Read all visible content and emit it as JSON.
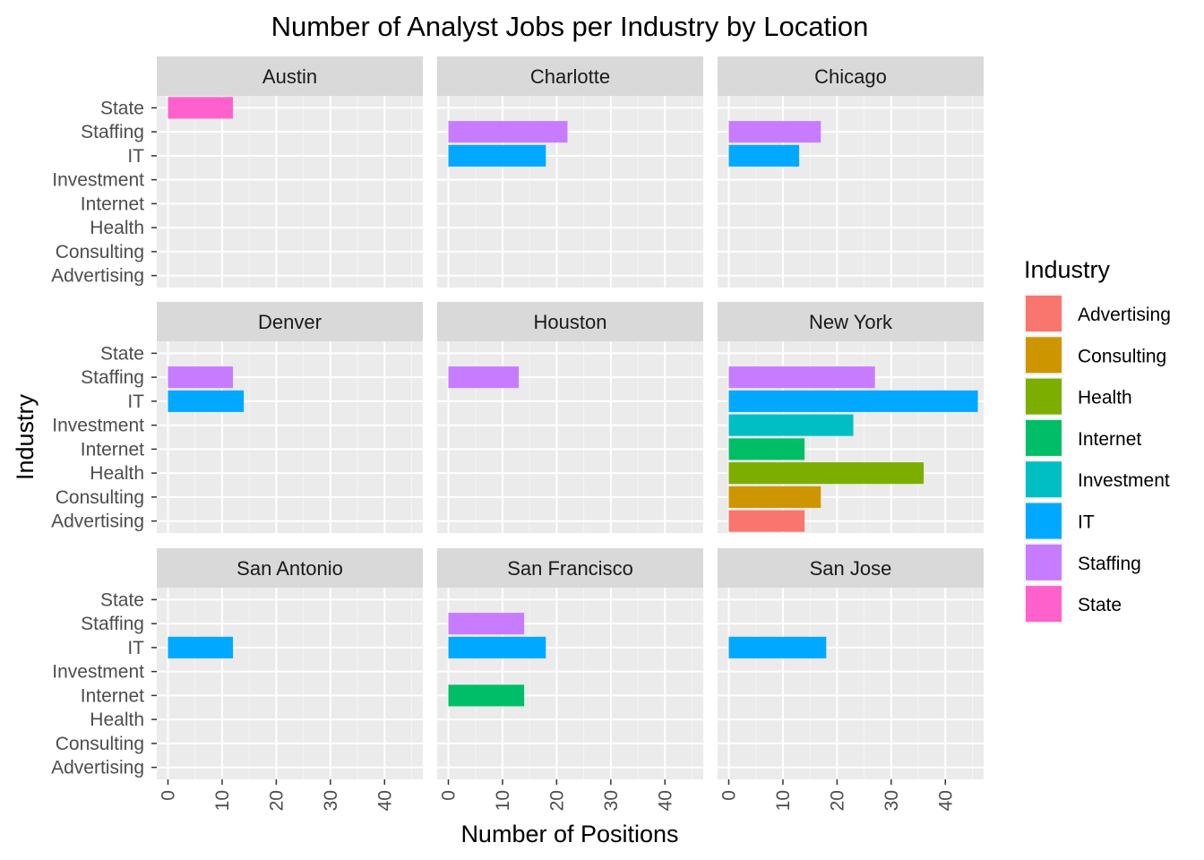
{
  "chart_data": {
    "type": "bar",
    "orientation": "horizontal",
    "title": "Number of Analyst Jobs per Industry by Location",
    "xlabel": "Number of Positions",
    "ylabel": "Industry",
    "xlim": [
      0,
      45
    ],
    "x_ticks": [
      0,
      10,
      20,
      30,
      40
    ],
    "grid": true,
    "legend_position": "right",
    "legend_title": "Industry",
    "categories": [
      "Advertising",
      "Consulting",
      "Health",
      "Internet",
      "Investment",
      "IT",
      "Staffing",
      "State"
    ],
    "colors": {
      "Advertising": "#F8766D",
      "Consulting": "#CD9600",
      "Health": "#7CAE00",
      "Internet": "#00BE67",
      "Investment": "#00BFC4",
      "IT": "#00A9FF",
      "Staffing": "#C77CFF",
      "State": "#FF61CC"
    },
    "facets": [
      {
        "location": "Austin",
        "values": {
          "State": 12
        }
      },
      {
        "location": "Charlotte",
        "values": {
          "Staffing": 22,
          "IT": 18
        }
      },
      {
        "location": "Chicago",
        "values": {
          "Staffing": 17,
          "IT": 13
        }
      },
      {
        "location": "Denver",
        "values": {
          "Staffing": 12,
          "IT": 14
        }
      },
      {
        "location": "Houston",
        "values": {
          "Staffing": 13
        }
      },
      {
        "location": "New York",
        "values": {
          "Staffing": 27,
          "IT": 46,
          "Investment": 23,
          "Internet": 14,
          "Health": 36,
          "Consulting": 17,
          "Advertising": 14
        }
      },
      {
        "location": "San Antonio",
        "values": {
          "IT": 12
        }
      },
      {
        "location": "San Francisco",
        "values": {
          "Staffing": 14,
          "IT": 18,
          "Internet": 14
        }
      },
      {
        "location": "San Jose",
        "values": {
          "IT": 18
        }
      }
    ]
  }
}
